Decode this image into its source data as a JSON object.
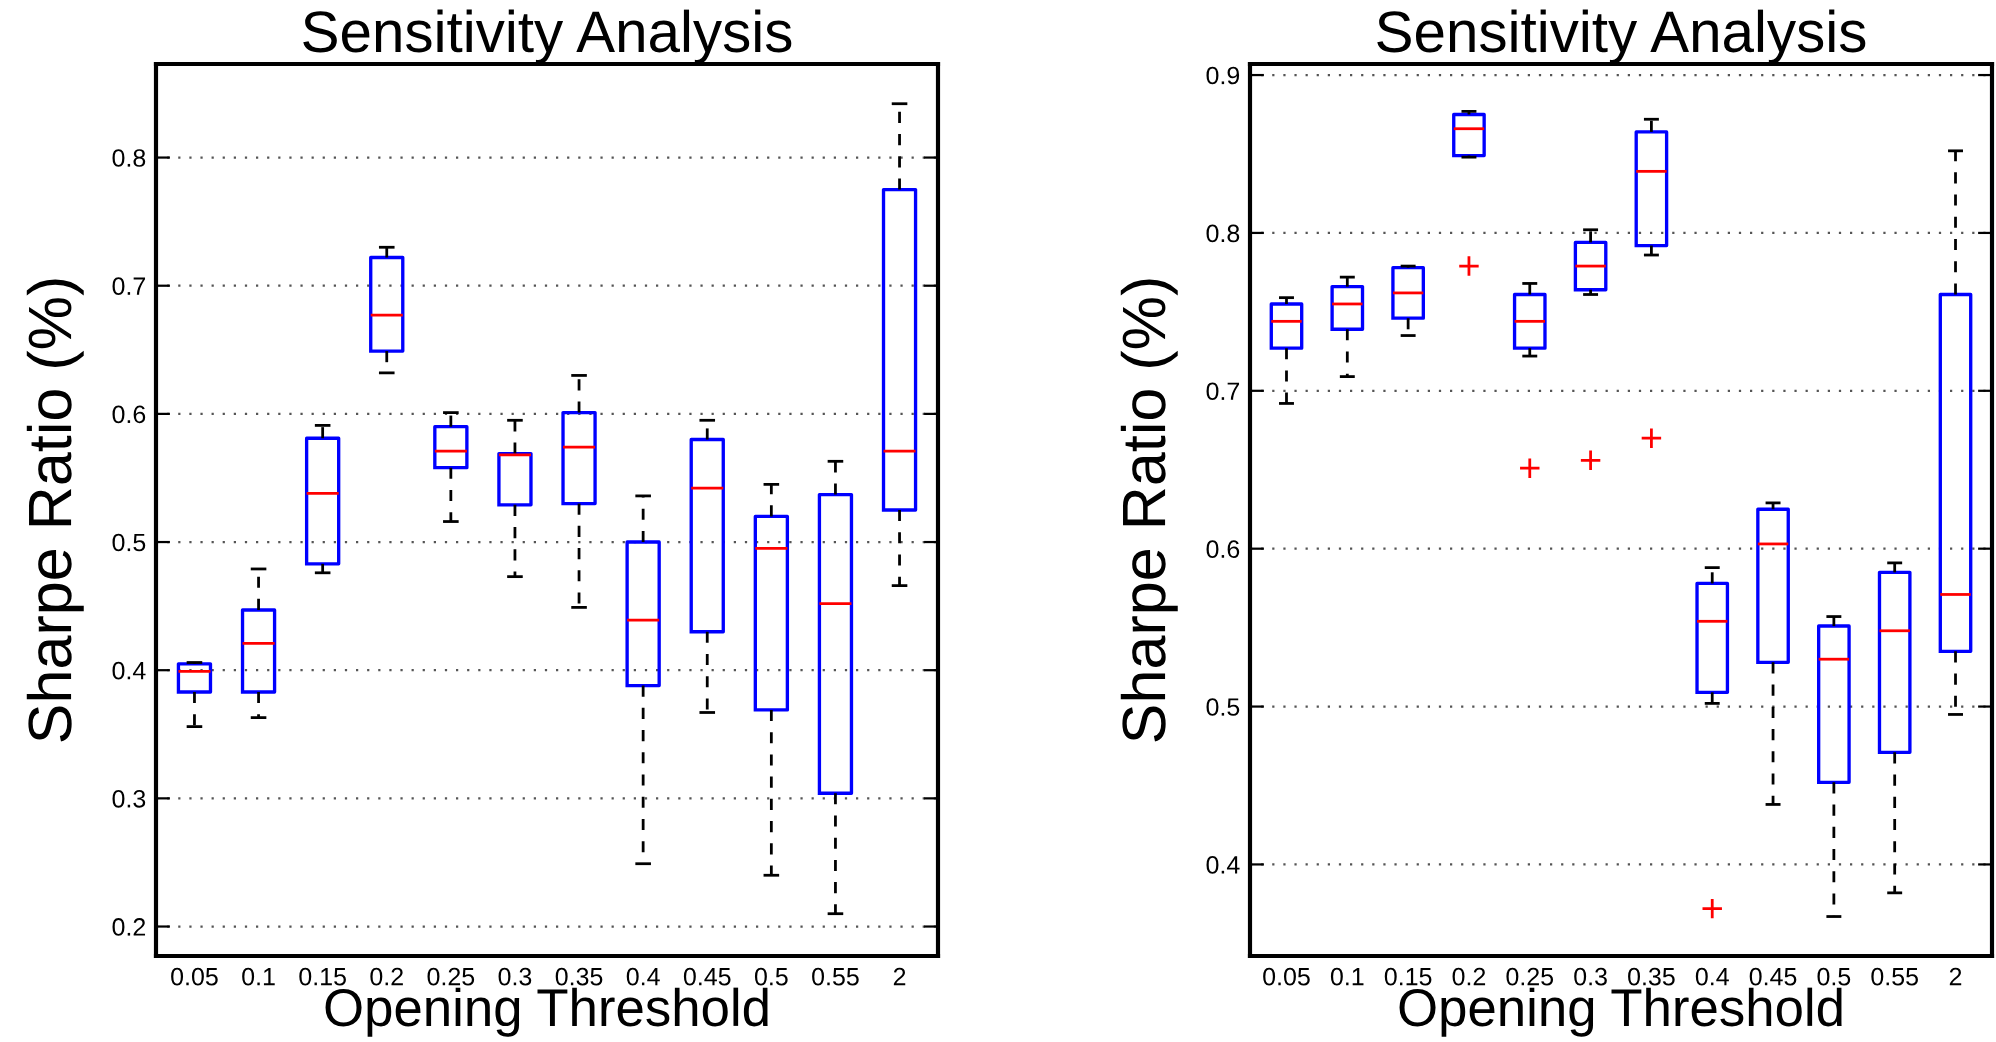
{
  "chart_data": [
    {
      "type": "box",
      "title": "Sensitivity Analysis",
      "xlabel": "Opening Threshold",
      "ylabel": "Sharpe Ratio (%)",
      "categories": [
        "0.05",
        "0.1",
        "0.15",
        "0.2",
        "0.25",
        "0.3",
        "0.35",
        "0.4",
        "0.45",
        "0.5",
        "0.55",
        "2"
      ],
      "ylim": [
        0.177,
        0.873
      ],
      "yticks": [
        0.2,
        0.3,
        0.4,
        0.5,
        0.6,
        0.7,
        0.8
      ],
      "grid": "y",
      "series": [
        {
          "color": "#0000ff",
          "boxes": [
            {
              "low": 0.356,
              "q1": 0.383,
              "median": 0.399,
              "q3": 0.405,
              "high": 0.406
            },
            {
              "low": 0.363,
              "q1": 0.383,
              "median": 0.421,
              "q3": 0.447,
              "high": 0.479
            },
            {
              "low": 0.476,
              "q1": 0.483,
              "median": 0.538,
              "q3": 0.581,
              "high": 0.591
            },
            {
              "low": 0.632,
              "q1": 0.649,
              "median": 0.677,
              "q3": 0.722,
              "high": 0.73
            },
            {
              "low": 0.516,
              "q1": 0.558,
              "median": 0.571,
              "q3": 0.59,
              "high": 0.601
            },
            {
              "low": 0.473,
              "q1": 0.529,
              "median": 0.568,
              "q3": 0.569,
              "high": 0.595
            },
            {
              "low": 0.449,
              "q1": 0.53,
              "median": 0.574,
              "q3": 0.601,
              "high": 0.63
            },
            {
              "low": 0.249,
              "q1": 0.388,
              "median": 0.439,
              "q3": 0.5,
              "high": 0.536
            },
            {
              "low": 0.367,
              "q1": 0.43,
              "median": 0.542,
              "q3": 0.58,
              "high": 0.595
            },
            {
              "low": 0.24,
              "q1": 0.369,
              "median": 0.495,
              "q3": 0.52,
              "high": 0.545
            },
            {
              "low": 0.21,
              "q1": 0.304,
              "median": 0.452,
              "q3": 0.537,
              "high": 0.563
            },
            {
              "low": 0.466,
              "q1": 0.525,
              "median": 0.571,
              "q3": 0.775,
              "high": 0.842
            }
          ]
        }
      ]
    },
    {
      "type": "box",
      "title": "Sensitivity Analysis",
      "xlabel": "Opening Threshold",
      "ylabel": "Sharpe Ratio (%)",
      "categories": [
        "0.05",
        "0.1",
        "0.15",
        "0.2",
        "0.25",
        "0.3",
        "0.35",
        "0.4",
        "0.45",
        "0.5",
        "0.55",
        "2"
      ],
      "ylim": [
        0.342,
        0.907
      ],
      "yticks": [
        0.4,
        0.5,
        0.6,
        0.7,
        0.8,
        0.9
      ],
      "grid": "y",
      "series": [
        {
          "color": "#0000ff",
          "boxes": [
            {
              "low": 0.692,
              "q1": 0.727,
              "median": 0.744,
              "q3": 0.755,
              "high": 0.759
            },
            {
              "low": 0.709,
              "q1": 0.739,
              "median": 0.755,
              "q3": 0.766,
              "high": 0.772
            },
            {
              "low": 0.735,
              "q1": 0.746,
              "median": 0.762,
              "q3": 0.778,
              "high": 0.779
            },
            {
              "low": 0.848,
              "q1": 0.849,
              "median": 0.866,
              "q3": 0.875,
              "high": 0.877,
              "outliers": [
                0.779
              ]
            },
            {
              "low": 0.722,
              "q1": 0.727,
              "median": 0.744,
              "q3": 0.761,
              "high": 0.768,
              "outliers": [
                0.651
              ]
            },
            {
              "low": 0.761,
              "q1": 0.764,
              "median": 0.779,
              "q3": 0.794,
              "high": 0.802,
              "outliers": [
                0.656
              ]
            },
            {
              "low": 0.786,
              "q1": 0.792,
              "median": 0.839,
              "q3": 0.864,
              "high": 0.872,
              "outliers": [
                0.67
              ]
            },
            {
              "low": 0.502,
              "q1": 0.509,
              "median": 0.554,
              "q3": 0.578,
              "high": 0.588,
              "outliers": [
                0.372
              ]
            },
            {
              "low": 0.438,
              "q1": 0.528,
              "median": 0.603,
              "q3": 0.625,
              "high": 0.629
            },
            {
              "low": 0.367,
              "q1": 0.452,
              "median": 0.53,
              "q3": 0.551,
              "high": 0.557
            },
            {
              "low": 0.382,
              "q1": 0.471,
              "median": 0.548,
              "q3": 0.585,
              "high": 0.591
            },
            {
              "low": 0.495,
              "q1": 0.535,
              "median": 0.571,
              "q3": 0.761,
              "high": 0.852
            }
          ]
        }
      ]
    }
  ]
}
